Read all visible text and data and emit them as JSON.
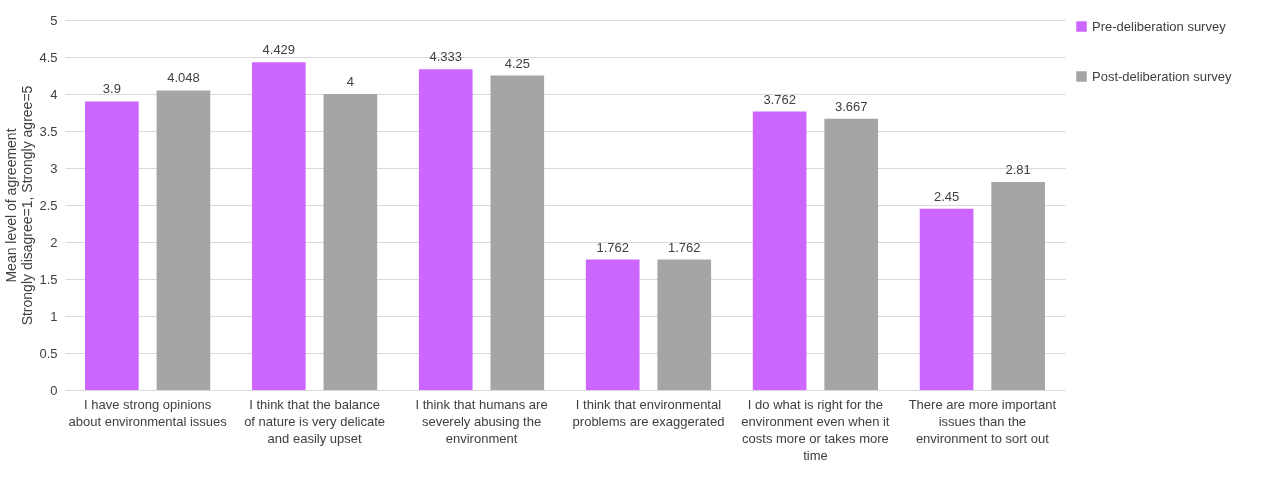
{
  "chart_data": {
    "type": "bar",
    "ylabel": "Mean level of agreement\nStrongly disagree=1, Strongly agree=5",
    "categories": [
      "I have strong opinions about environmental issues",
      "I think that the balance of nature is very delicate and easily upset",
      "I think that humans are severely abusing the environment",
      "I think that environmental problems are exaggerated",
      "I do what is right for the environment even when it costs more or takes more time",
      "There are more important issues than the environment to sort out"
    ],
    "series": [
      {
        "name": "Pre-deliberation survey",
        "color": "#cc66ff",
        "values": [
          3.9,
          4.429,
          4.333,
          1.762,
          3.762,
          2.45
        ]
      },
      {
        "name": "Post-deliberation survey",
        "color": "#a5a5a5",
        "values": [
          4.048,
          4,
          4.25,
          1.762,
          3.667,
          2.81
        ]
      }
    ],
    "ylim": [
      0,
      5
    ],
    "yticks": [
      0,
      0.5,
      1,
      1.5,
      2,
      2.5,
      3,
      3.5,
      4,
      4.5,
      5
    ],
    "grid": "y",
    "legend": "top right",
    "data_labels": true
  }
}
